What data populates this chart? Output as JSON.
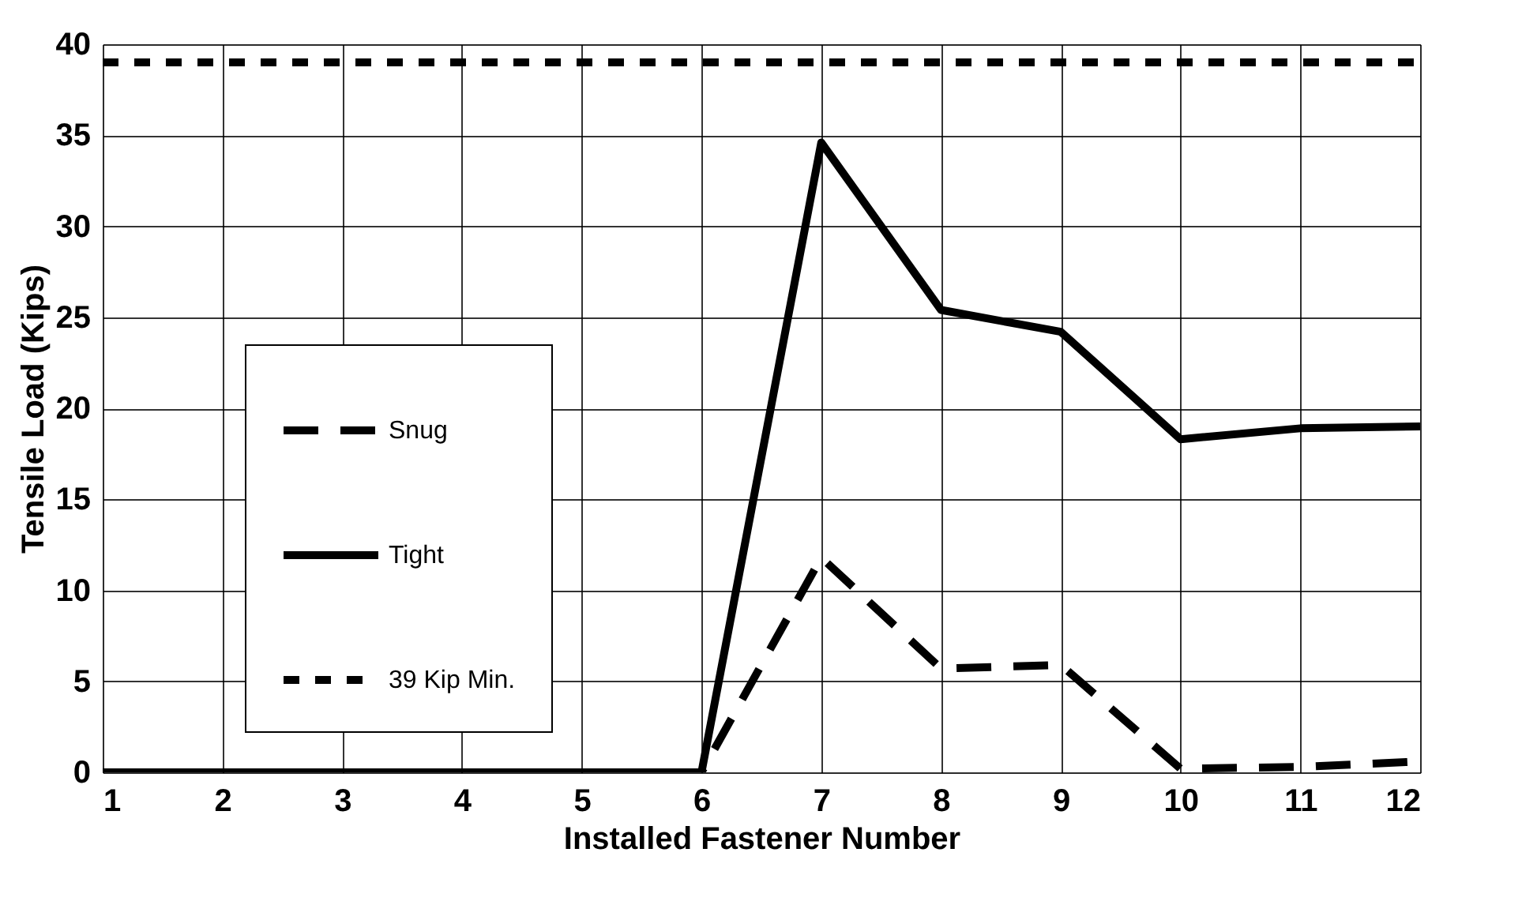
{
  "chart_data": {
    "type": "line",
    "xlabel": "Installed Fastener Number",
    "ylabel": "Tensile Load (Kips)",
    "x": [
      1,
      2,
      3,
      4,
      5,
      6,
      7,
      8,
      9,
      10,
      11,
      12
    ],
    "series": [
      {
        "name": "Snug",
        "color": "#000000",
        "line_style": "dashed",
        "values": [
          0,
          0,
          0,
          0,
          0,
          0,
          11.8,
          5.7,
          5.9,
          0.2,
          0.3,
          0.6
        ]
      },
      {
        "name": "Tight",
        "color": "#000000",
        "line_style": "solid",
        "values": [
          0,
          0,
          0,
          0,
          0,
          0,
          34.6,
          25.4,
          24.2,
          18.3,
          18.9,
          19.0
        ]
      },
      {
        "name": "39 Kip Min.",
        "color": "#000000",
        "line_style": "dotted",
        "values": [
          39,
          39,
          39,
          39,
          39,
          39,
          39,
          39,
          39,
          39,
          39,
          39
        ]
      }
    ],
    "xlim": [
      1,
      12
    ],
    "xticks": [
      1,
      2,
      3,
      4,
      5,
      6,
      7,
      8,
      9,
      10,
      11,
      12
    ],
    "ylim": [
      0,
      40
    ],
    "yticks": [
      0,
      5,
      10,
      15,
      20,
      25,
      30,
      35,
      40
    ],
    "grid": true,
    "legend": "left",
    "marker": "none"
  }
}
